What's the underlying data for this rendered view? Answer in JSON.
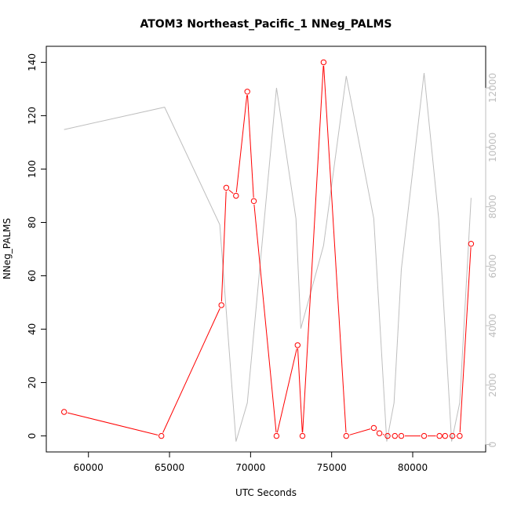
{
  "chart_data": {
    "type": "line",
    "title": "ATOM3 Northeast_Pacific_1 NNeg_PALMS",
    "xlabel": "UTC Seconds",
    "ylabel": "NNeg_PALMS",
    "xlim": [
      57400,
      84500
    ],
    "ylim": [
      -6,
      146
    ],
    "y2lim": [
      -250,
      13400
    ],
    "x_ticks": [
      60000,
      65000,
      70000,
      75000,
      80000
    ],
    "y_ticks": [
      0,
      20,
      40,
      60,
      80,
      100,
      120,
      140
    ],
    "y2_ticks": [
      0,
      2000,
      4000,
      6000,
      8000,
      10000,
      12000
    ],
    "colors": {
      "primary": "#ff0000",
      "secondary": "#bebebe",
      "axis": "#000000"
    },
    "series": [
      {
        "axis": "left",
        "points": [
          [
            58500,
            9
          ],
          [
            64500,
            0
          ],
          [
            68200,
            49
          ],
          [
            68500,
            93
          ],
          [
            69100,
            90
          ],
          [
            69800,
            129
          ],
          [
            70200,
            88
          ],
          [
            71600,
            0
          ],
          [
            72900,
            34
          ],
          [
            73200,
            0
          ],
          [
            74500,
            140
          ],
          [
            75900,
            0
          ],
          [
            77600,
            3
          ],
          [
            77950,
            1
          ],
          [
            78450,
            0
          ],
          [
            78900,
            0
          ],
          [
            79300,
            0
          ],
          [
            80700,
            0
          ],
          [
            81650,
            0
          ],
          [
            82000,
            0
          ],
          [
            82450,
            0
          ],
          [
            82900,
            0
          ],
          [
            83600,
            72
          ]
        ]
      },
      {
        "axis": "right",
        "points": [
          [
            58500,
            10600
          ],
          [
            64700,
            11350
          ],
          [
            68100,
            7400
          ],
          [
            69100,
            100
          ],
          [
            69800,
            1400
          ],
          [
            71600,
            12000
          ],
          [
            72800,
            7600
          ],
          [
            73100,
            3900
          ],
          [
            74500,
            6700
          ],
          [
            75900,
            12400
          ],
          [
            77600,
            7600
          ],
          [
            78400,
            100
          ],
          [
            78850,
            1400
          ],
          [
            79300,
            5900
          ],
          [
            80700,
            12500
          ],
          [
            81600,
            7600
          ],
          [
            82400,
            100
          ],
          [
            82900,
            1400
          ],
          [
            83600,
            8300
          ]
        ]
      }
    ]
  }
}
